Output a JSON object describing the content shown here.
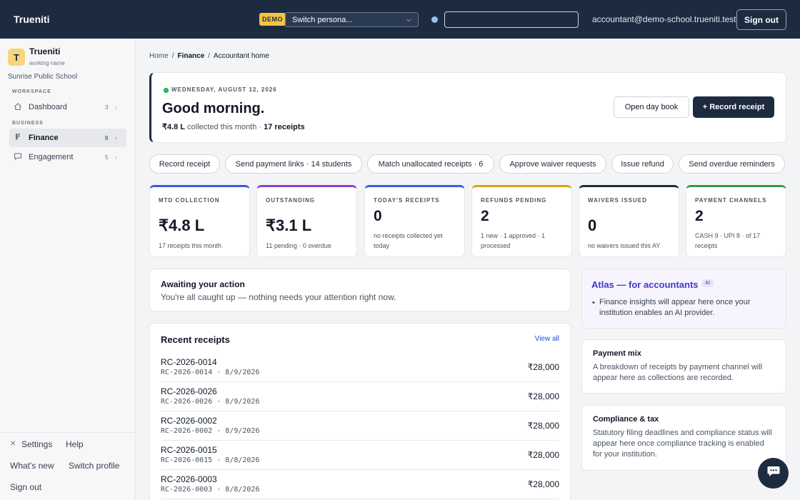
{
  "app": {
    "brand": "Trueniti",
    "demo_badge": "DEMO",
    "persona_placeholder": "Switch persona...",
    "user_email": "accountant@demo-school.trueniti.test",
    "sign_out": "Sign out"
  },
  "sidebar": {
    "org_initial": "T",
    "org_name": "Trueniti",
    "org_sub": "working name",
    "school": "Sunrise Public School",
    "sections": [
      {
        "label": "WORKSPACE"
      },
      {
        "label": "BUSINESS"
      }
    ],
    "items": [
      {
        "label": "Dashboard",
        "count": "3",
        "icon": "home-icon"
      },
      {
        "label": "Finance",
        "count": "8",
        "icon": "receipt-icon"
      },
      {
        "label": "Engagement",
        "count": "5",
        "icon": "message-icon"
      }
    ],
    "bottom": {
      "settings": "Settings",
      "help": "Help",
      "whats_new": "What's new",
      "switch_profile": "Switch profile",
      "sign_out": "Sign out"
    }
  },
  "breadcrumb": [
    "Home",
    "Finance",
    "Accountant home"
  ],
  "hero": {
    "date": "WEDNESDAY, AUGUST 12, 2026",
    "greeting": "Good morning.",
    "collected_amount": "₹4.8 L",
    "collected_text": "collected this month ·",
    "receipts_count": "17 receipts",
    "open_day_book": "Open day book",
    "record_receipt": "+ Record receipt"
  },
  "quick_actions": [
    "Record receipt",
    "Send payment links · 14 students",
    "Match unallocated receipts · 6",
    "Approve waiver requests",
    "Issue refund",
    "Send overdue reminders"
  ],
  "kpis": [
    {
      "label": "MTD COLLECTION",
      "value": "₹4.8 L",
      "sub": "17 receipts this month",
      "color": "#3b5bdb"
    },
    {
      "label": "OUTSTANDING",
      "value": "₹3.1 L",
      "sub": "11 pending · 0 overdue",
      "color": "#8b3fd6"
    },
    {
      "label": "TODAY'S RECEIPTS",
      "value": "0",
      "sub": "no receipts collected yet today",
      "color": "#3b5bdb"
    },
    {
      "label": "REFUNDS PENDING",
      "value": "2",
      "sub": "1 new · 1 approved · 1 processed",
      "color": "#d9a21b"
    },
    {
      "label": "WAIVERS ISSUED",
      "value": "0",
      "sub": "no waivers issued this AY",
      "color": "#1c2b40"
    },
    {
      "label": "PAYMENT CHANNELS",
      "value": "2",
      "sub": "CASH 9 · UPI 8 · of 17 receipts",
      "color": "#2f9e44"
    }
  ],
  "awaiting": {
    "title": "Awaiting your action",
    "text": "You're all caught up — nothing needs your attention right now."
  },
  "recent": {
    "title": "Recent receipts",
    "view_all": "View all",
    "rows": [
      {
        "id": "RC-2026-0014",
        "meta": "RC-2026-0014 · 8/9/2026",
        "amount": "₹28,000"
      },
      {
        "id": "RC-2026-0026",
        "meta": "RC-2026-0026 · 8/9/2026",
        "amount": "₹28,000"
      },
      {
        "id": "RC-2026-0002",
        "meta": "RC-2026-0002 · 8/9/2026",
        "amount": "₹28,000"
      },
      {
        "id": "RC-2026-0015",
        "meta": "RC-2026-0015 · 8/8/2026",
        "amount": "₹28,000"
      },
      {
        "id": "RC-2026-0003",
        "meta": "RC-2026-0003 · 8/8/2026",
        "amount": "₹28,000"
      }
    ]
  },
  "atlas": {
    "title": "Atlas — for accountants",
    "badge": "AI",
    "text": "Finance insights will appear here once your institution enables an AI provider."
  },
  "payment_mix": {
    "title": "Payment mix",
    "text": "A breakdown of receipts by payment channel will appear here as collections are recorded."
  },
  "compliance": {
    "title": "Compliance & tax",
    "text": "Statutory filing deadlines and compliance status will appear here once compliance tracking is enabled for your institution."
  }
}
